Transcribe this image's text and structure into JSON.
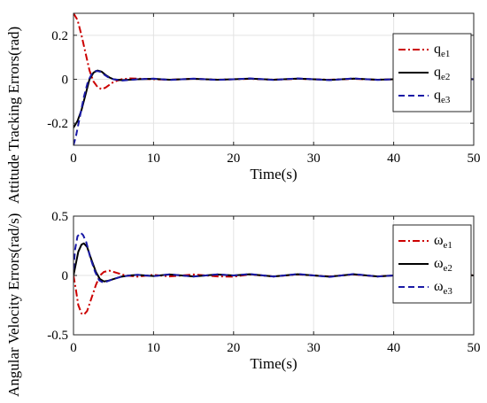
{
  "chart_data": [
    {
      "type": "line",
      "ylabel": "Attitude Tracking Errors(rad)",
      "xlabel": "Time(s)",
      "xlim": [
        0,
        50
      ],
      "ylim": [
        -0.3,
        0.3
      ],
      "xticks": [
        0,
        10,
        20,
        30,
        40,
        50
      ],
      "xtick_labels": [
        "0",
        "10",
        "20",
        "30",
        "40",
        "50"
      ],
      "yticks": [
        -0.2,
        0,
        0.2
      ],
      "ytick_labels": [
        "-0.2",
        "0",
        "0.2"
      ],
      "grid": true,
      "legend_position": "top-right",
      "series": [
        {
          "name_base": "q",
          "name_sub": "e1",
          "color": "#cc0000",
          "dash": "dashdot",
          "x": [
            0,
            0.5,
            1,
            1.5,
            2,
            2.5,
            3,
            3.5,
            4,
            4.5,
            5,
            6,
            7,
            8,
            10,
            12,
            15,
            18,
            20,
            22,
            25,
            28,
            30,
            32,
            35,
            38,
            40,
            42,
            45,
            48,
            50
          ],
          "y": [
            0.3,
            0.27,
            0.2,
            0.12,
            0.04,
            -0.01,
            -0.035,
            -0.045,
            -0.038,
            -0.025,
            -0.012,
            0.0,
            0.004,
            0.003,
            0.0,
            -0.002,
            0.002,
            -0.002,
            0.0,
            0.002,
            -0.002,
            0.002,
            0.0,
            -0.002,
            0.002,
            -0.002,
            0.0,
            0.002,
            -0.002,
            0.002,
            0.0
          ]
        },
        {
          "name_base": "q",
          "name_sub": "e2",
          "color": "#000000",
          "dash": "solid",
          "x": [
            0,
            0.5,
            1,
            1.5,
            2,
            2.5,
            3,
            3.5,
            4,
            4.5,
            5,
            6,
            7,
            8,
            10,
            12,
            15,
            18,
            20,
            22,
            25,
            28,
            30,
            32,
            35,
            38,
            40,
            42,
            45,
            48,
            50
          ],
          "y": [
            -0.22,
            -0.19,
            -0.14,
            -0.07,
            0.0,
            0.03,
            0.04,
            0.035,
            0.02,
            0.008,
            0.0,
            -0.004,
            -0.002,
            0.0,
            0.002,
            -0.002,
            0.002,
            -0.002,
            0.0,
            0.003,
            -0.002,
            0.003,
            0.0,
            -0.003,
            0.003,
            -0.002,
            0.0,
            0.003,
            -0.003,
            0.004,
            0.0
          ]
        },
        {
          "name_base": "q",
          "name_sub": "e3",
          "color": "#1a1aa6",
          "dash": "dashed",
          "x": [
            0,
            0.3,
            0.8,
            1.3,
            1.8,
            2.3,
            2.8,
            3.3,
            3.8,
            4.3,
            5,
            6,
            7,
            8,
            10,
            12,
            15,
            18,
            20,
            22,
            25,
            28,
            30,
            32,
            35,
            38,
            40,
            42,
            45,
            48,
            50
          ],
          "y": [
            -0.3,
            -0.26,
            -0.17,
            -0.08,
            -0.01,
            0.025,
            0.038,
            0.035,
            0.022,
            0.01,
            0.0,
            -0.006,
            -0.003,
            0.0,
            0.003,
            -0.003,
            0.003,
            -0.003,
            0.0,
            0.004,
            -0.003,
            0.004,
            0.0,
            -0.004,
            0.004,
            -0.003,
            0.0,
            0.004,
            -0.004,
            0.005,
            0.0
          ]
        }
      ]
    },
    {
      "type": "line",
      "ylabel": "Angular Velocity Errors(rad/s)",
      "xlabel": "Time(s)",
      "xlim": [
        0,
        50
      ],
      "ylim": [
        -0.5,
        0.5
      ],
      "xticks": [
        0,
        10,
        20,
        30,
        40,
        50
      ],
      "xtick_labels": [
        "0",
        "10",
        "20",
        "30",
        "40",
        "50"
      ],
      "yticks": [
        -0.5,
        0,
        0.5
      ],
      "ytick_labels": [
        "-0.5",
        "0",
        "0.5"
      ],
      "grid": true,
      "legend_position": "top-right",
      "series": [
        {
          "name_base": "ω",
          "name_sub": "e1",
          "color": "#cc0000",
          "dash": "dashdot",
          "x": [
            0,
            0.3,
            0.6,
            1,
            1.3,
            1.7,
            2.2,
            2.8,
            3.3,
            3.8,
            4.5,
            5.5,
            6.5,
            8,
            10,
            12,
            15,
            18,
            20,
            22,
            25,
            28,
            30,
            32,
            35,
            38,
            40,
            42,
            45,
            48,
            50
          ],
          "y": [
            0.0,
            -0.12,
            -0.25,
            -0.32,
            -0.33,
            -0.3,
            -0.2,
            -0.08,
            0.0,
            0.03,
            0.04,
            0.02,
            0.0,
            -0.01,
            0.005,
            -0.008,
            0.008,
            -0.008,
            -0.01,
            0.008,
            -0.008,
            0.008,
            0.0,
            -0.008,
            0.008,
            -0.008,
            0.0,
            0.008,
            -0.008,
            0.01,
            0.0
          ]
        },
        {
          "name_base": "ω",
          "name_sub": "e2",
          "color": "#000000",
          "dash": "solid",
          "x": [
            0,
            0.3,
            0.6,
            1,
            1.3,
            1.7,
            2.2,
            2.8,
            3.3,
            3.8,
            4.3,
            5,
            6,
            7,
            8,
            10,
            12,
            15,
            18,
            20,
            22,
            25,
            28,
            30,
            32,
            35,
            38,
            40,
            42,
            45,
            48,
            50
          ],
          "y": [
            0.0,
            0.1,
            0.2,
            0.26,
            0.27,
            0.24,
            0.14,
            0.03,
            -0.03,
            -0.05,
            -0.045,
            -0.03,
            -0.01,
            0.0,
            0.005,
            -0.005,
            0.008,
            -0.008,
            0.008,
            0.0,
            0.01,
            -0.008,
            0.01,
            0.0,
            -0.01,
            0.01,
            -0.008,
            0.0,
            0.01,
            -0.01,
            0.012,
            0.0
          ]
        },
        {
          "name_base": "ω",
          "name_sub": "e3",
          "color": "#1a1aa6",
          "dash": "dashed",
          "x": [
            0,
            0.2,
            0.5,
            0.9,
            1.2,
            1.6,
            2.1,
            2.7,
            3.2,
            3.7,
            4.2,
            5,
            6,
            7,
            8,
            10,
            12,
            15,
            18,
            20,
            22,
            25,
            28,
            30,
            32,
            35,
            38,
            40,
            42,
            45,
            48,
            50
          ],
          "y": [
            0.05,
            0.22,
            0.33,
            0.36,
            0.34,
            0.28,
            0.15,
            0.03,
            -0.04,
            -0.06,
            -0.05,
            -0.03,
            -0.01,
            0.0,
            0.006,
            -0.006,
            0.009,
            -0.009,
            0.009,
            0.0,
            0.012,
            -0.009,
            0.012,
            0.0,
            -0.012,
            0.012,
            -0.009,
            0.0,
            0.012,
            -0.012,
            0.014,
            0.0
          ]
        }
      ]
    }
  ]
}
